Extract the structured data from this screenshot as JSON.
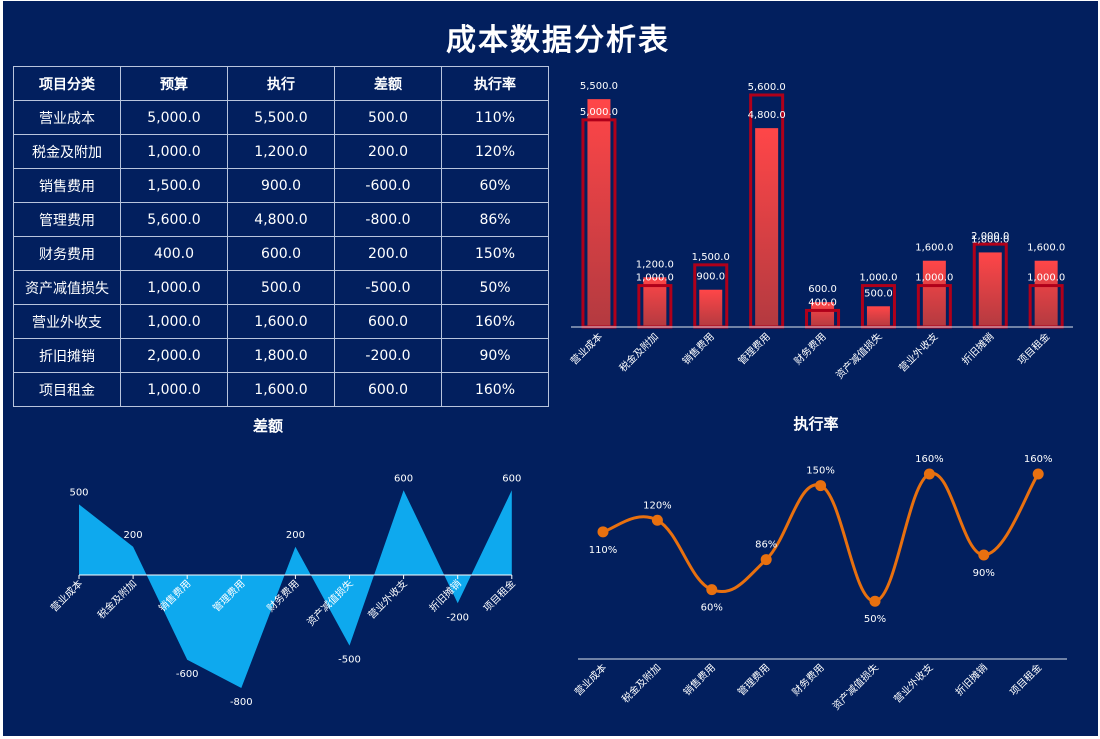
{
  "title": "成本数据分析表",
  "table": {
    "headers": [
      "项目分类",
      "预算",
      "执行",
      "差额",
      "执行率"
    ],
    "rows": [
      [
        "营业成本",
        "5,000.0",
        "5,500.0",
        "500.0",
        "110%"
      ],
      [
        "税金及附加",
        "1,000.0",
        "1,200.0",
        "200.0",
        "120%"
      ],
      [
        "销售费用",
        "1,500.0",
        "900.0",
        "-600.0",
        "60%"
      ],
      [
        "管理费用",
        "5,600.0",
        "4,800.0",
        "-800.0",
        "86%"
      ],
      [
        "财务费用",
        "400.0",
        "600.0",
        "200.0",
        "150%"
      ],
      [
        "资产减值损失",
        "1,000.0",
        "500.0",
        "-500.0",
        "50%"
      ],
      [
        "营业外收支",
        "1,000.0",
        "1,600.0",
        "600.0",
        "160%"
      ],
      [
        "折旧摊销",
        "2,000.0",
        "1,800.0",
        "-200.0",
        "90%"
      ],
      [
        "项目租金",
        "1,000.0",
        "1,600.0",
        "600.0",
        "160%"
      ]
    ]
  },
  "chart_data": [
    {
      "type": "bar",
      "categories": [
        "营业成本",
        "税金及附加",
        "销售费用",
        "管理费用",
        "财务费用",
        "资产减值损失",
        "营业外收支",
        "折旧摊销",
        "项目租金"
      ],
      "series": [
        {
          "values": [
            5000,
            1000,
            1500,
            5600,
            400,
            1000,
            1000,
            2000,
            1000
          ],
          "labels": [
            "5,000.0",
            "1,000.0",
            "1,500.0",
            "5,600.0",
            "400.0",
            "1,000.0",
            "1,000.0",
            "2,000.0",
            "1,000.0"
          ],
          "style": "outline",
          "color": "#B0001A"
        },
        {
          "values": [
            5500,
            1200,
            900,
            4800,
            600,
            500,
            1600,
            1800,
            1600
          ],
          "labels": [
            "5,500.0",
            "1,200.0",
            "900.0",
            "4,800.0",
            "600.0",
            "500.0",
            "1,600.0",
            "1,800.0",
            "1,600.0"
          ],
          "style": "gradient",
          "color": "#FF4648"
        }
      ],
      "ylim": [
        0,
        6000
      ],
      "grid": false
    },
    {
      "type": "area",
      "title": "差额",
      "categories": [
        "营业成本",
        "税金及附加",
        "销售费用",
        "管理费用",
        "财务费用",
        "资产减值损失",
        "营业外收支",
        "折旧摊销",
        "项目租金"
      ],
      "values": [
        500,
        200,
        -600,
        -800,
        200,
        -500,
        600,
        -200,
        600
      ],
      "ylim": [
        -800,
        600
      ],
      "color": "#0EA9EE",
      "grid": false
    },
    {
      "type": "line",
      "title": "执行率",
      "categories": [
        "营业成本",
        "税金及附加",
        "销售费用",
        "管理费用",
        "财务费用",
        "资产减值损失",
        "营业外收支",
        "折旧摊销",
        "项目租金"
      ],
      "values": [
        110,
        120,
        60,
        86,
        150,
        50,
        160,
        90,
        160
      ],
      "labels": [
        "110%",
        "120%",
        "60%",
        "86%",
        "150%",
        "50%",
        "160%",
        "90%",
        "160%"
      ],
      "ylim": [
        0,
        160
      ],
      "color": "#E8700F",
      "smooth": true,
      "grid": false
    }
  ],
  "colors": {
    "background": "#021F5E",
    "text": "#FFFFFF"
  }
}
